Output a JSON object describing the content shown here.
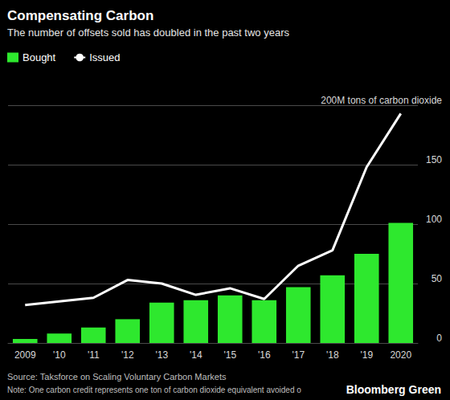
{
  "chart_data": {
    "type": "bar",
    "title": "Compensating Carbon",
    "subtitle": "The number of offsets sold has doubled in the past two years",
    "categories": [
      "2009",
      "'10",
      "'11",
      "'12",
      "'13",
      "'14",
      "'15",
      "'16",
      "'17",
      "'18",
      "'19",
      "2020"
    ],
    "series": [
      {
        "name": "Bought",
        "type": "bar",
        "color": "#2ee82e",
        "values": [
          3.4,
          8,
          13,
          20,
          34,
          36,
          40,
          36,
          47,
          57,
          75,
          101
        ]
      },
      {
        "name": "Issued",
        "type": "line",
        "color": "#ffffff",
        "values": [
          32,
          35,
          38,
          53,
          50,
          40.5,
          46,
          37,
          65,
          78,
          148,
          193
        ]
      }
    ],
    "ylim": [
      0,
      200
    ],
    "yticks": [
      0,
      50,
      100,
      150,
      {
        "value": 200,
        "label": "200M tons of carbon dioxide"
      }
    ],
    "grid": true,
    "legend": "top-left",
    "source": "Source: Taksforce on Scaling Voluntary Carbon Markets",
    "note": "Note: One carbon credit represents one ton of carbon dioxide equivalent avoided o",
    "credit": "Bloomberg Green"
  }
}
